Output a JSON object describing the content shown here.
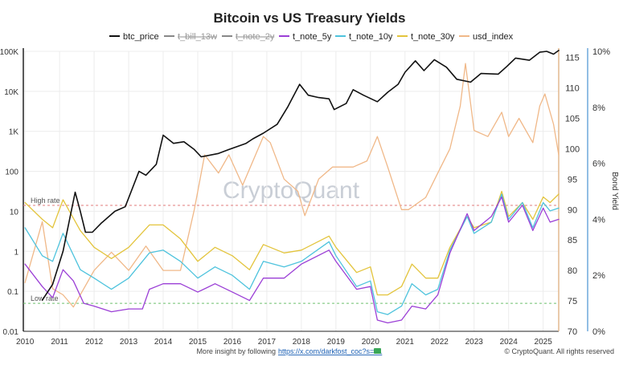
{
  "chart_data": {
    "type": "line",
    "title": "Bitcoin vs US Treasury Yields",
    "watermark": "CryptoQuant",
    "footer_text": "More insight by following",
    "footer_link": "https://x.com/darkfost_coc?s=21",
    "copyright": "© CryptoQuant. All rights reserved",
    "left_axis": {
      "scale": "log",
      "ticks": [
        "0.01",
        "0.1",
        "1",
        "10",
        "100",
        "1K",
        "10K",
        "100K"
      ]
    },
    "mid_axis": {
      "ticks": [
        "70",
        "75",
        "80",
        "85",
        "90",
        "95",
        "100",
        "105",
        "110",
        "115"
      ],
      "range": [
        70,
        116
      ]
    },
    "right_axis": {
      "label": "Bond Yield",
      "ticks": [
        "0%",
        "2%",
        "4%",
        "6%",
        "8%",
        "10%"
      ],
      "range": [
        0,
        10
      ]
    },
    "x_ticks": [
      "2010",
      "2011",
      "2012",
      "2013",
      "2014",
      "2015",
      "2016",
      "2017",
      "2018",
      "2019",
      "2020",
      "2021",
      "2022",
      "2023",
      "2024",
      "2025"
    ],
    "x_range": [
      2009.95,
      2025.45
    ],
    "reference_lines": [
      {
        "label": "High rate",
        "yield": 4.5,
        "color": "#e07b7b"
      },
      {
        "label": "Low rate",
        "yield": 1.0,
        "color": "#6cc06c"
      }
    ],
    "series": [
      {
        "name": "btc_price",
        "color": "#111111",
        "axis": "left",
        "points": [
          [
            2010.5,
            0.06
          ],
          [
            2010.8,
            0.15
          ],
          [
            2011.1,
            1.0
          ],
          [
            2011.45,
            30
          ],
          [
            2011.6,
            10
          ],
          [
            2011.75,
            3
          ],
          [
            2011.95,
            3
          ],
          [
            2012.2,
            5
          ],
          [
            2012.6,
            10
          ],
          [
            2012.9,
            13
          ],
          [
            2013.3,
            100
          ],
          [
            2013.5,
            80
          ],
          [
            2013.8,
            150
          ],
          [
            2014.0,
            800
          ],
          [
            2014.3,
            500
          ],
          [
            2014.6,
            550
          ],
          [
            2014.9,
            350
          ],
          [
            2015.1,
            230
          ],
          [
            2015.6,
            280
          ],
          [
            2015.9,
            350
          ],
          [
            2016.4,
            500
          ],
          [
            2016.6,
            650
          ],
          [
            2016.9,
            900
          ],
          [
            2017.3,
            1500
          ],
          [
            2017.6,
            4000
          ],
          [
            2017.95,
            15000
          ],
          [
            2018.2,
            8000
          ],
          [
            2018.5,
            7000
          ],
          [
            2018.8,
            6500
          ],
          [
            2018.95,
            3500
          ],
          [
            2019.3,
            5000
          ],
          [
            2019.5,
            11000
          ],
          [
            2019.8,
            8000
          ],
          [
            2020.2,
            5500
          ],
          [
            2020.5,
            9500
          ],
          [
            2020.8,
            15000
          ],
          [
            2021.0,
            30000
          ],
          [
            2021.3,
            58000
          ],
          [
            2021.55,
            33000
          ],
          [
            2021.85,
            62000
          ],
          [
            2022.2,
            40000
          ],
          [
            2022.5,
            20000
          ],
          [
            2022.9,
            17000
          ],
          [
            2023.2,
            28000
          ],
          [
            2023.7,
            27000
          ],
          [
            2023.95,
            42000
          ],
          [
            2024.2,
            68000
          ],
          [
            2024.6,
            60000
          ],
          [
            2024.9,
            95000
          ],
          [
            2025.1,
            100000
          ],
          [
            2025.3,
            85000
          ],
          [
            2025.45,
            105000
          ]
        ]
      },
      {
        "name": "t_bill_13w",
        "color": "#777777",
        "axis": "right",
        "points": []
      },
      {
        "name": "t_note_2y",
        "color": "#777777",
        "axis": "right",
        "points": []
      },
      {
        "name": "t_note_5y",
        "color": "#9b3fd6",
        "axis": "right",
        "points": [
          [
            2010.0,
            2.4
          ],
          [
            2010.5,
            1.6
          ],
          [
            2010.8,
            1.2
          ],
          [
            2011.1,
            2.2
          ],
          [
            2011.4,
            1.8
          ],
          [
            2011.7,
            1.0
          ],
          [
            2012.0,
            0.9
          ],
          [
            2012.5,
            0.7
          ],
          [
            2013.0,
            0.8
          ],
          [
            2013.4,
            0.8
          ],
          [
            2013.6,
            1.5
          ],
          [
            2014.0,
            1.7
          ],
          [
            2014.5,
            1.7
          ],
          [
            2015.0,
            1.4
          ],
          [
            2015.5,
            1.7
          ],
          [
            2016.0,
            1.4
          ],
          [
            2016.5,
            1.1
          ],
          [
            2016.9,
            1.9
          ],
          [
            2017.5,
            1.9
          ],
          [
            2018.0,
            2.4
          ],
          [
            2018.8,
            2.9
          ],
          [
            2019.0,
            2.5
          ],
          [
            2019.6,
            1.5
          ],
          [
            2020.0,
            1.6
          ],
          [
            2020.2,
            0.4
          ],
          [
            2020.5,
            0.3
          ],
          [
            2020.9,
            0.4
          ],
          [
            2021.2,
            0.9
          ],
          [
            2021.6,
            0.8
          ],
          [
            2021.95,
            1.3
          ],
          [
            2022.3,
            2.8
          ],
          [
            2022.8,
            4.2
          ],
          [
            2023.0,
            3.6
          ],
          [
            2023.5,
            4.1
          ],
          [
            2023.8,
            4.8
          ],
          [
            2024.0,
            3.9
          ],
          [
            2024.4,
            4.5
          ],
          [
            2024.7,
            3.6
          ],
          [
            2025.0,
            4.4
          ],
          [
            2025.2,
            3.9
          ],
          [
            2025.45,
            4.0
          ]
        ]
      },
      {
        "name": "t_note_10y",
        "color": "#4ec3dd",
        "axis": "right",
        "points": [
          [
            2010.0,
            3.7
          ],
          [
            2010.5,
            2.7
          ],
          [
            2010.8,
            2.5
          ],
          [
            2011.1,
            3.5
          ],
          [
            2011.6,
            2.2
          ],
          [
            2012.0,
            1.9
          ],
          [
            2012.5,
            1.5
          ],
          [
            2013.0,
            1.9
          ],
          [
            2013.6,
            2.8
          ],
          [
            2014.0,
            2.9
          ],
          [
            2014.5,
            2.5
          ],
          [
            2015.0,
            1.9
          ],
          [
            2015.5,
            2.3
          ],
          [
            2016.0,
            2.0
          ],
          [
            2016.5,
            1.5
          ],
          [
            2016.9,
            2.5
          ],
          [
            2017.5,
            2.3
          ],
          [
            2018.0,
            2.5
          ],
          [
            2018.8,
            3.2
          ],
          [
            2019.0,
            2.7
          ],
          [
            2019.6,
            1.6
          ],
          [
            2020.0,
            1.8
          ],
          [
            2020.2,
            0.7
          ],
          [
            2020.5,
            0.6
          ],
          [
            2020.9,
            0.9
          ],
          [
            2021.2,
            1.7
          ],
          [
            2021.6,
            1.3
          ],
          [
            2021.95,
            1.5
          ],
          [
            2022.3,
            2.9
          ],
          [
            2022.8,
            4.1
          ],
          [
            2023.0,
            3.5
          ],
          [
            2023.5,
            3.9
          ],
          [
            2023.8,
            4.9
          ],
          [
            2024.0,
            4.0
          ],
          [
            2024.4,
            4.6
          ],
          [
            2024.7,
            3.7
          ],
          [
            2025.0,
            4.6
          ],
          [
            2025.2,
            4.3
          ],
          [
            2025.45,
            4.4
          ]
        ]
      },
      {
        "name": "t_note_30y",
        "color": "#e3c43c",
        "axis": "right",
        "points": [
          [
            2010.0,
            4.6
          ],
          [
            2010.5,
            4.0
          ],
          [
            2010.8,
            3.7
          ],
          [
            2011.1,
            4.7
          ],
          [
            2011.6,
            3.6
          ],
          [
            2012.0,
            3.0
          ],
          [
            2012.5,
            2.6
          ],
          [
            2013.0,
            3.0
          ],
          [
            2013.6,
            3.8
          ],
          [
            2014.0,
            3.8
          ],
          [
            2014.5,
            3.3
          ],
          [
            2015.0,
            2.5
          ],
          [
            2015.5,
            3.0
          ],
          [
            2016.0,
            2.7
          ],
          [
            2016.5,
            2.2
          ],
          [
            2016.9,
            3.1
          ],
          [
            2017.5,
            2.8
          ],
          [
            2018.0,
            2.9
          ],
          [
            2018.8,
            3.4
          ],
          [
            2019.0,
            3.0
          ],
          [
            2019.6,
            2.1
          ],
          [
            2020.0,
            2.3
          ],
          [
            2020.2,
            1.3
          ],
          [
            2020.5,
            1.3
          ],
          [
            2020.9,
            1.6
          ],
          [
            2021.2,
            2.4
          ],
          [
            2021.6,
            1.9
          ],
          [
            2021.95,
            1.9
          ],
          [
            2022.3,
            3.0
          ],
          [
            2022.8,
            4.1
          ],
          [
            2023.0,
            3.7
          ],
          [
            2023.5,
            3.9
          ],
          [
            2023.8,
            5.0
          ],
          [
            2024.0,
            4.1
          ],
          [
            2024.4,
            4.6
          ],
          [
            2024.7,
            4.0
          ],
          [
            2025.0,
            4.8
          ],
          [
            2025.2,
            4.6
          ],
          [
            2025.45,
            4.9
          ]
        ]
      },
      {
        "name": "usd_index",
        "color": "#f0b888",
        "axis": "mid",
        "points": [
          [
            2010.0,
            78
          ],
          [
            2010.5,
            88
          ],
          [
            2010.8,
            77
          ],
          [
            2011.1,
            76
          ],
          [
            2011.4,
            74
          ],
          [
            2011.8,
            78
          ],
          [
            2012.0,
            80
          ],
          [
            2012.5,
            83
          ],
          [
            2013.0,
            80
          ],
          [
            2013.5,
            84
          ],
          [
            2014.0,
            80
          ],
          [
            2014.5,
            80
          ],
          [
            2014.9,
            90
          ],
          [
            2015.2,
            99
          ],
          [
            2015.6,
            96
          ],
          [
            2015.9,
            99
          ],
          [
            2016.3,
            94
          ],
          [
            2016.9,
            102
          ],
          [
            2017.1,
            101
          ],
          [
            2017.5,
            95
          ],
          [
            2017.9,
            93
          ],
          [
            2018.1,
            89
          ],
          [
            2018.5,
            95
          ],
          [
            2018.9,
            97
          ],
          [
            2019.5,
            97
          ],
          [
            2019.9,
            98
          ],
          [
            2020.2,
            102
          ],
          [
            2020.5,
            97
          ],
          [
            2020.9,
            90
          ],
          [
            2021.1,
            90
          ],
          [
            2021.6,
            92
          ],
          [
            2021.95,
            96
          ],
          [
            2022.3,
            100
          ],
          [
            2022.6,
            107
          ],
          [
            2022.75,
            114
          ],
          [
            2023.0,
            103
          ],
          [
            2023.4,
            102
          ],
          [
            2023.8,
            106
          ],
          [
            2024.0,
            102
          ],
          [
            2024.3,
            105
          ],
          [
            2024.7,
            101
          ],
          [
            2024.9,
            107
          ],
          [
            2025.05,
            109
          ],
          [
            2025.3,
            104
          ],
          [
            2025.45,
            99
          ]
        ]
      }
    ]
  }
}
